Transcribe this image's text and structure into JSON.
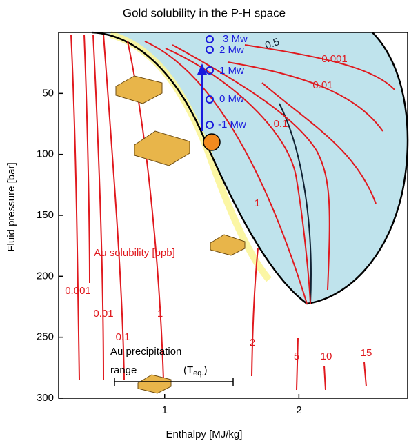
{
  "chart_data": {
    "type": "contour",
    "title": "Gold solubility in the P-H space",
    "x_label": "Enthalpy [MJ/kg]",
    "y_label": "Fluid pressure [bar]",
    "xlim": [
      0.21,
      2.81
    ],
    "ylim": [
      0,
      300
    ],
    "y_inverted": true,
    "xticks": [
      1,
      2
    ],
    "yticks": [
      50,
      100,
      150,
      200,
      250,
      300
    ],
    "contour_labels_liquid": [
      "0.001",
      "0.01",
      "0.1",
      "1",
      "2",
      "5",
      "10",
      "15"
    ],
    "contour_labels_two_phase": [
      "0.5",
      "0.001",
      "0.01",
      "0.1",
      "1"
    ],
    "magnitude_labels": [
      "3 Mw",
      "2 Mw",
      "1 Mw",
      "0 Mw",
      "-1 Mw"
    ],
    "solubility_label": "Au solubility [ppb]",
    "precipitation_label": [
      "Au precipitation",
      "range"
    ],
    "teq_label": {
      "open": "(T",
      "sub": "eq.",
      "close": ")"
    }
  }
}
